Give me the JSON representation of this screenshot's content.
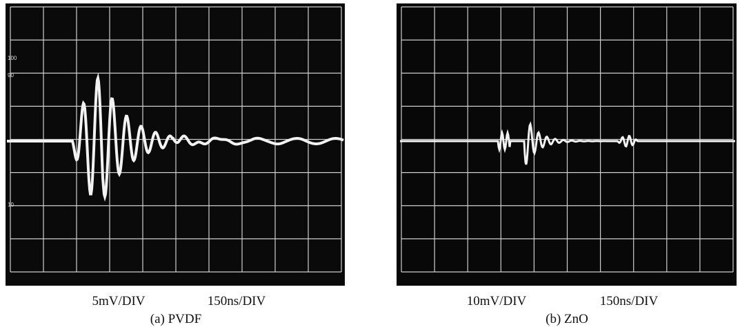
{
  "panels": [
    {
      "volts_per_div": "5mV/DIV",
      "time_per_div": "150ns/DIV",
      "caption": "(a) PVDF",
      "graticule_labels": [
        "100",
        "90",
        "10"
      ]
    },
    {
      "volts_per_div": "10mV/DIV",
      "time_per_div": "150ns/DIV",
      "caption": "(b) ZnO"
    }
  ]
}
